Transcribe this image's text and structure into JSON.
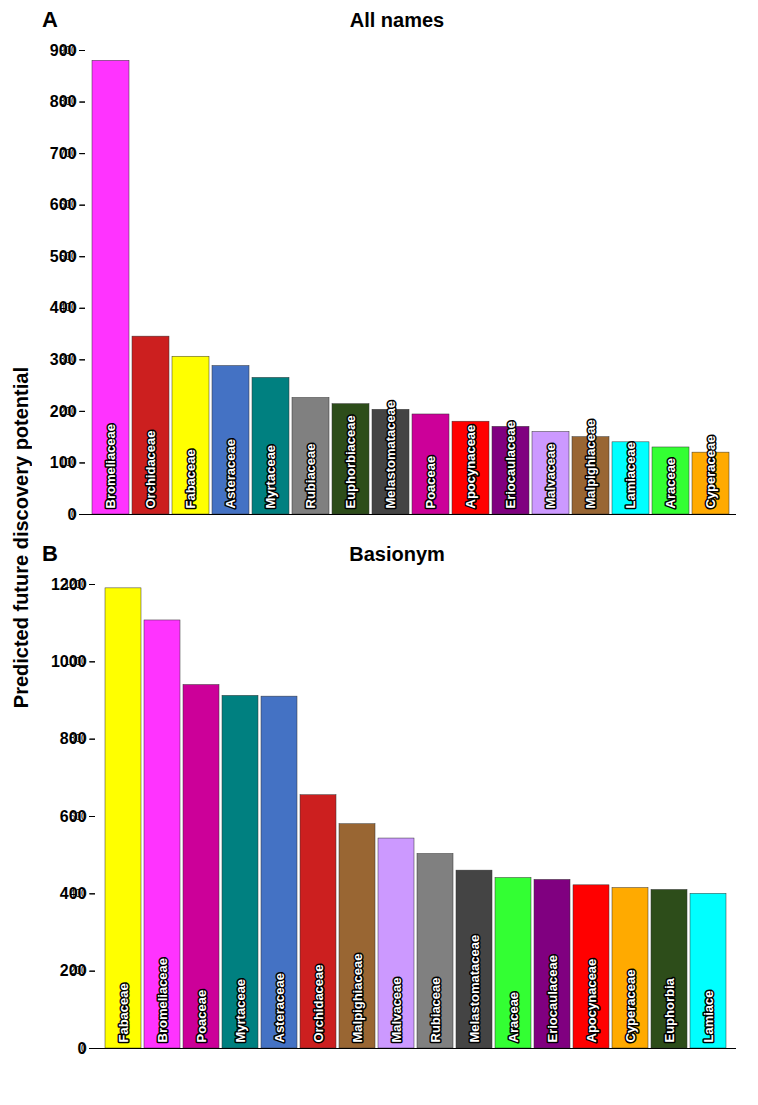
{
  "ylabel": "Predicted future discovery potential",
  "chart_data": [
    {
      "type": "bar",
      "panel_letter": "A",
      "title": "All names",
      "categories": [
        "Bromeliaceae",
        "Orchidaceae",
        "Fabaceae",
        "Asteraceae",
        "Myrtaceae",
        "Rubiaceae",
        "Euphorbiaceae",
        "Melastomataceae",
        "Poaceae",
        "Apocynaceae",
        "Eriocaulaceae",
        "Malvaceae",
        "Malpighiaceae",
        "Lamiaceae",
        "Araceae",
        "Cyperaceae"
      ],
      "values": [
        880,
        345,
        306,
        288,
        265,
        226,
        214,
        203,
        194,
        180,
        170,
        160,
        150,
        140,
        130,
        120
      ],
      "colors": [
        "#ff33ff",
        "#cc1f1f",
        "#ffff00",
        "#4472c4",
        "#008080",
        "#808080",
        "#2d4d1a",
        "#444444",
        "#cc0099",
        "#ff0000",
        "#800080",
        "#cc99ff",
        "#996633",
        "#00ffff",
        "#33ff33",
        "#ffaa00"
      ],
      "ylim": [
        0,
        900
      ],
      "yticks": [
        0,
        100,
        200,
        300,
        400,
        500,
        600,
        700,
        800,
        900
      ],
      "tick_labels": "y"
    },
    {
      "type": "bar",
      "panel_letter": "B",
      "title": "Basionym",
      "categories": [
        "Fabaceae",
        "Bromeliaceae",
        "Poaceae",
        "Myrtaceae",
        "Asteraceae",
        "Orchidaceae",
        "Malpighiaceae",
        "Malvaceae",
        "Rubiaceae",
        "Melastomataceae",
        "Araceae",
        "Eriocaulaceae",
        "Apocynaceae",
        "Cyperaceae",
        "Euphorbia",
        "Lamiace"
      ],
      "values": [
        1190,
        1107,
        940,
        912,
        910,
        655,
        580,
        543,
        503,
        460,
        441,
        436,
        422,
        415,
        410,
        400
      ],
      "colors": [
        "#ffff00",
        "#ff33ff",
        "#cc0099",
        "#008080",
        "#4472c4",
        "#cc1f1f",
        "#996633",
        "#cc99ff",
        "#808080",
        "#444444",
        "#33ff33",
        "#800080",
        "#ff0000",
        "#ffaa00",
        "#2d4d1a",
        "#00ffff"
      ],
      "ylim": [
        0,
        1200
      ],
      "yticks": [
        0,
        200,
        400,
        600,
        800,
        1000,
        1200
      ],
      "tick_labels": "y"
    }
  ]
}
